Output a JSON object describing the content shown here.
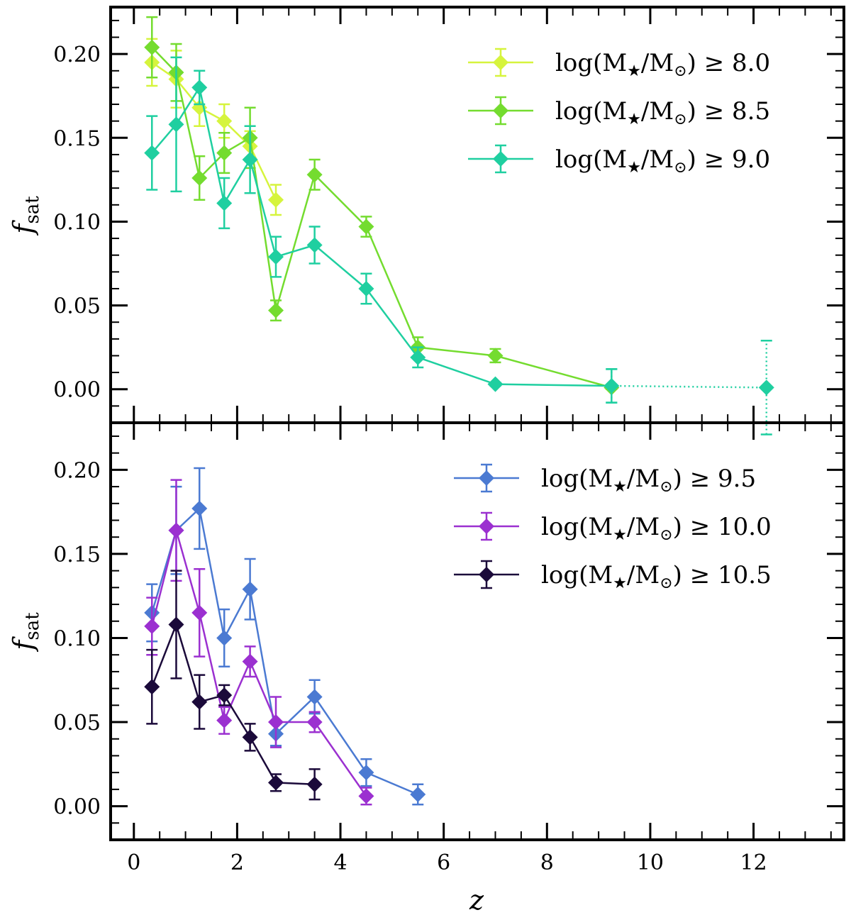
{
  "chart_data": [
    {
      "type": "line",
      "panel": "top",
      "title": "",
      "xlabel": "z",
      "ylabel": "f_sat",
      "ylabel_main": "f",
      "ylabel_sub": "sat",
      "xlim": [
        -0.45,
        13.75
      ],
      "ylim": [
        -0.02,
        0.228
      ],
      "xticks": [
        0,
        2,
        4,
        6,
        8,
        10,
        12
      ],
      "yticks": [
        0.0,
        0.05,
        0.1,
        0.15,
        0.2
      ],
      "ytick_labels": [
        "0.00",
        "0.05",
        "0.10",
        "0.15",
        "0.20"
      ],
      "legend_position": "top-right",
      "series": [
        {
          "name": "log(M★/M⊙) ≥ 8.0",
          "label_prefix": "log(M",
          "label_mid": "/M",
          "label_suffix": ") ≥ 8.0",
          "color": "#d6f43d",
          "x": [
            0.35,
            0.82,
            1.27,
            1.75,
            2.25,
            2.75
          ],
          "y": [
            0.195,
            0.185,
            0.168,
            0.16,
            0.145,
            0.113
          ],
          "yerr": [
            0.014,
            0.017,
            0.011,
            0.01,
            0.009,
            0.009
          ]
        },
        {
          "name": "log(M★/M⊙) ≥ 8.5",
          "label_prefix": "log(M",
          "label_mid": "/M",
          "label_suffix": ") ≥ 8.5",
          "color": "#74dc2f",
          "x": [
            0.35,
            0.82,
            1.27,
            1.75,
            2.25,
            2.75,
            3.5,
            4.5,
            5.5,
            7.0,
            9.25
          ],
          "y": [
            0.204,
            0.189,
            0.126,
            0.141,
            0.15,
            0.047,
            0.128,
            0.097,
            0.025,
            0.02,
            0.001
          ],
          "yerr": [
            0.018,
            0.017,
            0.013,
            0.012,
            0.018,
            0.006,
            0.009,
            0.006,
            0.006,
            0.004,
            0.001
          ]
        },
        {
          "name": "log(M★/M⊙) ≥ 9.0",
          "label_prefix": "log(M",
          "label_mid": "/M",
          "label_suffix": ") ≥ 9.0",
          "color": "#1fcfa0",
          "x": [
            0.35,
            0.82,
            1.27,
            1.75,
            2.25,
            2.75,
            3.5,
            4.5,
            5.5,
            7.0,
            9.25
          ],
          "y": [
            0.141,
            0.158,
            0.18,
            0.111,
            0.137,
            0.079,
            0.086,
            0.06,
            0.019,
            0.003,
            0.002
          ],
          "yerr": [
            0.022,
            0.04,
            0.01,
            0.015,
            0.02,
            0.012,
            0.011,
            0.009,
            0.006,
            0.001,
            0.01
          ],
          "extension": {
            "x": [
              9.25,
              12.25
            ],
            "y": [
              0.002,
              0.001
            ],
            "yerr": [
              0.01,
              0.028
            ],
            "style": "dotted"
          }
        }
      ]
    },
    {
      "type": "line",
      "panel": "bottom",
      "title": "",
      "xlabel": "z",
      "ylabel": "f_sat",
      "ylabel_main": "f",
      "ylabel_sub": "sat",
      "xlim": [
        -0.45,
        13.75
      ],
      "ylim": [
        -0.02,
        0.228
      ],
      "xticks": [
        0,
        2,
        4,
        6,
        8,
        10,
        12
      ],
      "yticks": [
        0.0,
        0.05,
        0.1,
        0.15,
        0.2
      ],
      "ytick_labels": [
        "0.00",
        "0.05",
        "0.10",
        "0.15",
        "0.20"
      ],
      "legend_position": "top-right",
      "series": [
        {
          "name": "log(M★/M⊙) ≥ 9.5",
          "label_prefix": "log(M",
          "label_mid": "/M",
          "label_suffix": ") ≥ 9.5",
          "color": "#4b7ad2",
          "x": [
            0.35,
            0.82,
            1.27,
            1.75,
            2.25,
            2.75,
            3.5,
            4.5,
            5.5
          ],
          "y": [
            0.115,
            0.164,
            0.177,
            0.1,
            0.129,
            0.043,
            0.065,
            0.02,
            0.007
          ],
          "yerr": [
            0.017,
            0.026,
            0.024,
            0.017,
            0.018,
            0.007,
            0.01,
            0.008,
            0.006
          ]
        },
        {
          "name": "log(M★/M⊙) ≥ 10.0",
          "label_prefix": "log(M",
          "label_mid": "/M",
          "label_suffix": ") ≥ 10.0",
          "color": "#9b30d0",
          "x": [
            0.35,
            0.82,
            1.27,
            1.75,
            2.25,
            2.75,
            3.5,
            4.5
          ],
          "y": [
            0.107,
            0.164,
            0.115,
            0.051,
            0.086,
            0.05,
            0.05,
            0.006
          ],
          "yerr": [
            0.017,
            0.03,
            0.026,
            0.008,
            0.009,
            0.015,
            0.006,
            0.005
          ]
        },
        {
          "name": "log(M★/M⊙) ≥ 10.5",
          "label_prefix": "log(M",
          "label_mid": "/M",
          "label_suffix": ") ≥ 10.5",
          "color": "#1b0a3a",
          "x": [
            0.35,
            0.82,
            1.27,
            1.75,
            2.25,
            2.75,
            3.5
          ],
          "y": [
            0.071,
            0.108,
            0.062,
            0.066,
            0.041,
            0.014,
            0.013
          ],
          "yerr": [
            0.022,
            0.032,
            0.016,
            0.006,
            0.008,
            0.005,
            0.009
          ]
        }
      ]
    }
  ]
}
